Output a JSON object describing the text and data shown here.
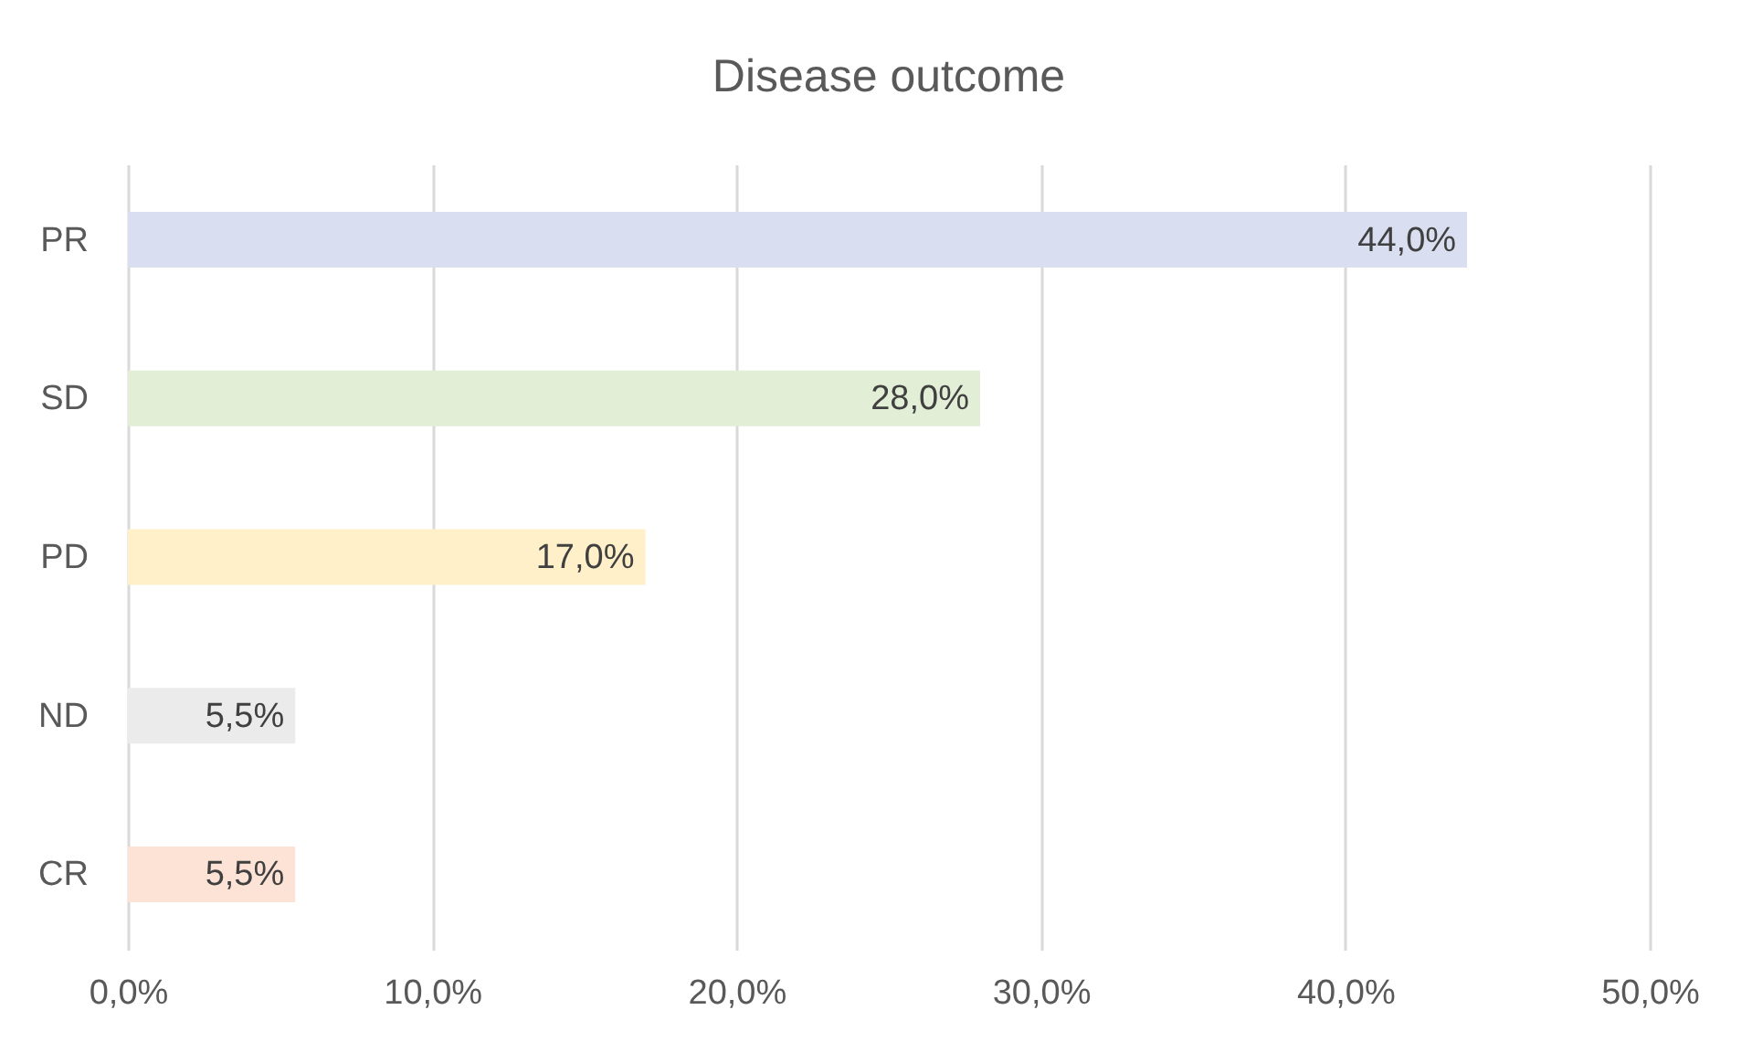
{
  "chart_data": {
    "type": "bar",
    "orientation": "horizontal",
    "title": "Disease outcome",
    "categories": [
      "PR",
      "SD",
      "PD",
      "ND",
      "CR"
    ],
    "values": [
      44.0,
      28.0,
      17.0,
      5.5,
      5.5
    ],
    "colors": [
      "#d9dff0",
      "#e2eed6",
      "#fff0c9",
      "#ebebeb",
      "#fde3d6"
    ],
    "value_labels": [
      "44,0%",
      "28,0%",
      "17,0%",
      "5,5%",
      "5,5%"
    ],
    "xlim": [
      0,
      50
    ],
    "xticks": [
      {
        "value": 0,
        "label": "0,0%"
      },
      {
        "value": 10,
        "label": "10,0%"
      },
      {
        "value": 20,
        "label": "20,0%"
      },
      {
        "value": 30,
        "label": "30,0%"
      },
      {
        "value": 40,
        "label": "40,0%"
      },
      {
        "value": 50,
        "label": "50,0%"
      }
    ],
    "grid": "x"
  }
}
